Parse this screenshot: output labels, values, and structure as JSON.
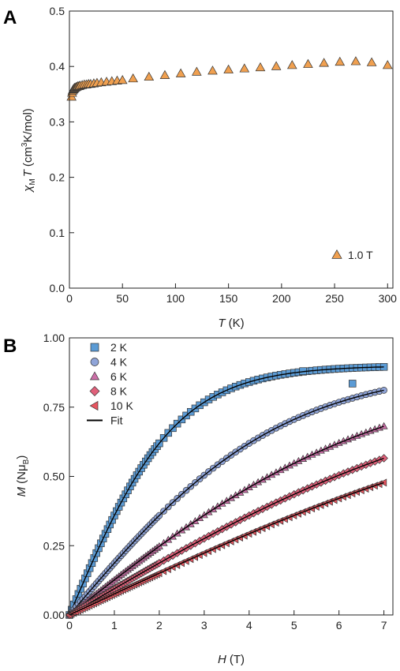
{
  "chart_data": [
    {
      "panel": "A",
      "type": "scatter",
      "xlabel_italic": "T",
      "xlabel_unit": "(K)",
      "ylabel_main": "χ",
      "ylabel_sub": "M",
      "ylabel_var": "T",
      "ylabel_unit_pre": "(cm",
      "ylabel_unit_sup": "3",
      "ylabel_unit_post": "K/mol)",
      "xlim": [
        0,
        305
      ],
      "ylim": [
        0,
        0.5
      ],
      "xticks": [
        "0",
        "50",
        "100",
        "150",
        "200",
        "250",
        "300"
      ],
      "yticks": [
        "0.0",
        "0.1",
        "0.2",
        "0.3",
        "0.4",
        "0.5"
      ],
      "legend_position": "bottom-right",
      "series": [
        {
          "name": "1.0 T",
          "marker": "triangle-up",
          "color": "#f0a050",
          "x": [
            2,
            2.5,
            3,
            3.5,
            4,
            4.5,
            5,
            6,
            7,
            8,
            9,
            10,
            12,
            14,
            16,
            18,
            20,
            23,
            26,
            30,
            35,
            40,
            45,
            50,
            60,
            75,
            90,
            105,
            120,
            135,
            150,
            165,
            180,
            195,
            210,
            225,
            240,
            255,
            270,
            285,
            300
          ],
          "y": [
            0.345,
            0.352,
            0.356,
            0.358,
            0.359,
            0.36,
            0.361,
            0.362,
            0.363,
            0.364,
            0.364,
            0.365,
            0.366,
            0.367,
            0.367,
            0.368,
            0.368,
            0.369,
            0.37,
            0.371,
            0.372,
            0.373,
            0.374,
            0.375,
            0.378,
            0.381,
            0.384,
            0.387,
            0.39,
            0.392,
            0.394,
            0.396,
            0.398,
            0.4,
            0.402,
            0.404,
            0.406,
            0.408,
            0.409,
            0.407,
            0.402
          ]
        }
      ]
    },
    {
      "panel": "B",
      "type": "scatter",
      "xlabel_italic": "H",
      "xlabel_unit": "(T)",
      "ylabel_var": "M",
      "ylabel_unit_pre": "(Nμ",
      "ylabel_unit_sub": "B",
      "ylabel_unit_post": ")",
      "xlim": [
        0,
        7.2
      ],
      "ylim": [
        0,
        1.0
      ],
      "xticks": [
        "0",
        "1",
        "2",
        "3",
        "4",
        "5",
        "6",
        "7"
      ],
      "yticks": [
        "0.00",
        "0.25",
        "0.50",
        "0.75",
        "1.00"
      ],
      "legend_position": "top-left",
      "series": [
        {
          "name": "2 K",
          "marker": "square",
          "color": "#5b9bd5",
          "Msat": 0.9,
          "k": 0.38,
          "outliers": [
            [
              5.2,
              0.88
            ],
            [
              6.3,
              0.835
            ]
          ]
        },
        {
          "name": "4 K",
          "marker": "circle",
          "color": "#8fa4d8",
          "Msat": 0.9,
          "k": 0.19
        },
        {
          "name": "6 K",
          "marker": "triangle-up",
          "color": "#cc6fa8",
          "Msat": 0.9,
          "k": 0.127
        },
        {
          "name": "8 K",
          "marker": "diamond",
          "color": "#e0607a",
          "Msat": 0.9,
          "k": 0.095
        },
        {
          "name": "10 K",
          "marker": "triangle-left",
          "color": "#e85560",
          "Msat": 0.9,
          "k": 0.076
        }
      ],
      "fit": {
        "name": "Fit",
        "color": "#000000"
      }
    }
  ]
}
